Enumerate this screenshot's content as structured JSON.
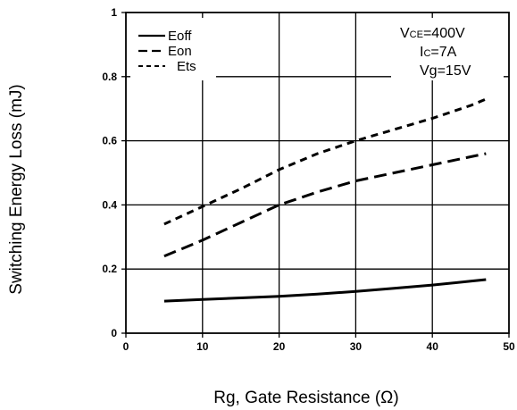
{
  "chart_data": {
    "type": "line",
    "title": "",
    "xlabel": "Rg, Gate Resistance (Ω)",
    "ylabel": "Switching Energy Loss (mJ)",
    "xlim": [
      0,
      50
    ],
    "ylim": [
      0,
      1
    ],
    "xticks": [
      "0",
      "10",
      "20",
      "30",
      "40",
      "50"
    ],
    "yticks": [
      "0",
      "0.2",
      "0.4",
      "0.6",
      "0.8",
      "1"
    ],
    "grid": true,
    "legend_position": "top-left",
    "series": [
      {
        "name": "Eoff",
        "style": "solid",
        "x": [
          5,
          10,
          15,
          20,
          25,
          30,
          35,
          40,
          45,
          47
        ],
        "y": [
          0.1,
          0.105,
          0.11,
          0.115,
          0.122,
          0.13,
          0.14,
          0.15,
          0.162,
          0.167
        ]
      },
      {
        "name": "Eon",
        "style": "dashed",
        "x": [
          5,
          10,
          15,
          20,
          25,
          30,
          35,
          40,
          45,
          47
        ],
        "y": [
          0.24,
          0.29,
          0.345,
          0.4,
          0.44,
          0.475,
          0.5,
          0.525,
          0.55,
          0.56
        ]
      },
      {
        "name": "Ets",
        "style": "dotted",
        "x": [
          5,
          10,
          15,
          20,
          25,
          30,
          35,
          40,
          45,
          47
        ],
        "y": [
          0.34,
          0.395,
          0.45,
          0.51,
          0.56,
          0.6,
          0.635,
          0.67,
          0.71,
          0.73
        ]
      }
    ],
    "conditions": {
      "vce_main": "V",
      "vce_sub": "CE",
      "vce_value": "=400V",
      "ic_main": "I",
      "ic_sub": "C",
      "ic_value": "=7A",
      "vg": "Vg=15V"
    }
  }
}
